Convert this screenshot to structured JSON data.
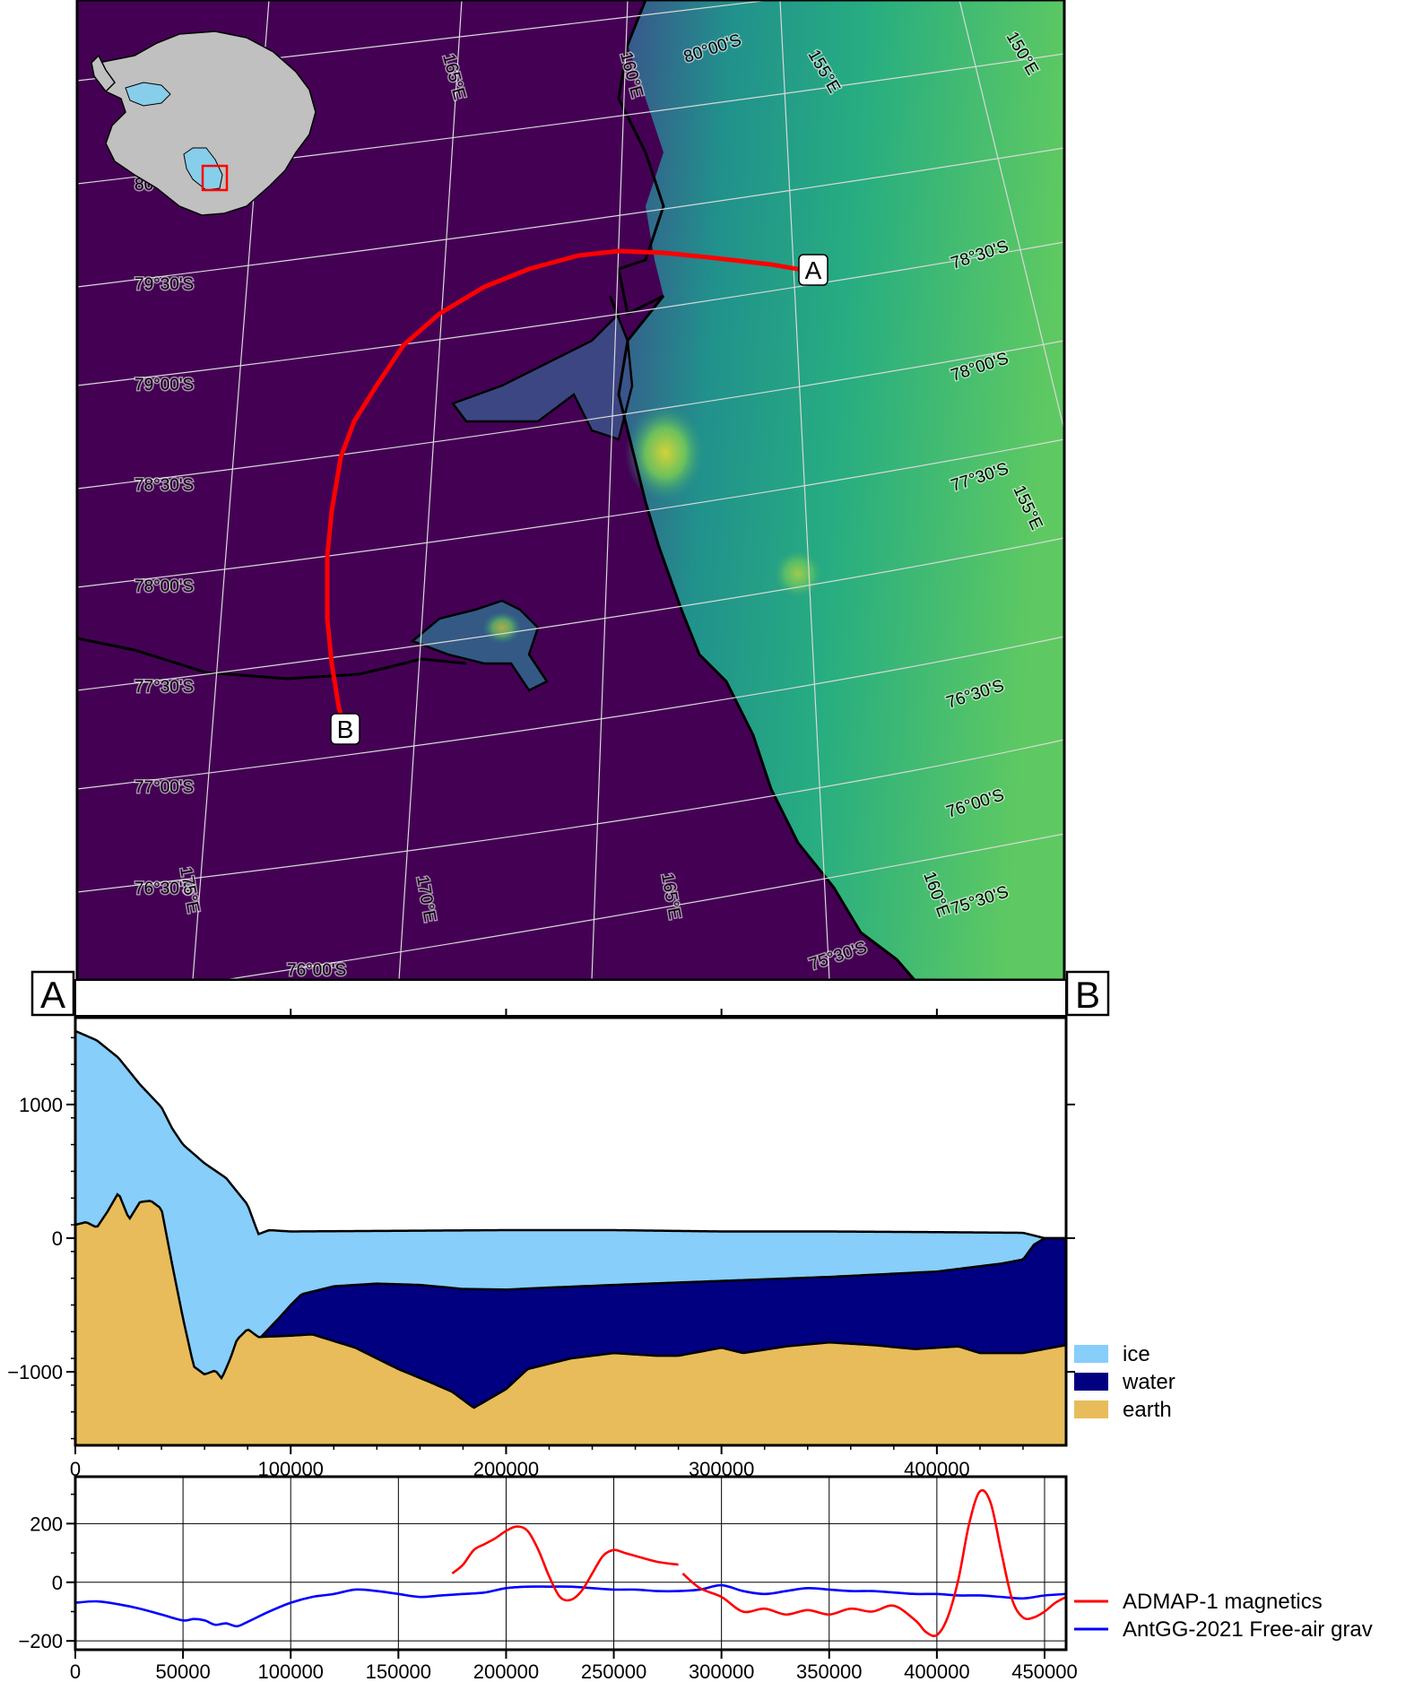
{
  "map": {
    "colors": {
      "background": "#440154",
      "line": "#ff0000",
      "coast": "#000000",
      "grid": "#d9d9d9"
    },
    "endpoints": {
      "start": "A",
      "end": "B"
    },
    "lat_labels_left": [
      "80°00'S",
      "79°30'S",
      "79°00'S",
      "78°30'S",
      "78°00'S",
      "77°30'S",
      "77°00'S",
      "76°30'S",
      "76°00'S"
    ],
    "lat_labels_right": [
      "80°00'S",
      "78°30'S",
      "78°00'S",
      "77°30'S",
      "76°30'S",
      "76°00'S",
      "75°30'S",
      "75°30'S"
    ],
    "lon_labels_top": [
      "165°E",
      "160°E",
      "155°E",
      "150°E"
    ],
    "lon_labels_bottom": [
      "175°E",
      "170°E",
      "165°E",
      "160°E",
      "155°E"
    ],
    "inset": {
      "land_color": "#c0c0c0",
      "ice_shelf_color": "#87ceeb",
      "box_color": "#ff0000"
    }
  },
  "profile_endpoints": {
    "left": "A",
    "right": "B"
  },
  "chart_data": [
    {
      "type": "area",
      "xlim": [
        0,
        460000
      ],
      "ylim": [
        -1550,
        1650
      ],
      "x_ticks": [
        0,
        100000,
        200000,
        300000,
        400000
      ],
      "x_tick_labels": [
        "0",
        "100000",
        "200000",
        "300000",
        "400000"
      ],
      "y_ticks": [
        1000,
        0,
        -1000
      ],
      "y_tick_labels": [
        "1000",
        "0",
        "−1000"
      ],
      "legend_position": "right",
      "series": [
        {
          "name": "ice",
          "color": "#87cefa"
        },
        {
          "name": "water",
          "color": "#000080"
        },
        {
          "name": "earth",
          "color": "#e8bc5a"
        }
      ],
      "surface": {
        "x": [
          0,
          10000,
          20000,
          30000,
          40000,
          45000,
          50000,
          60000,
          70000,
          80000,
          85000,
          90000,
          100000,
          150000,
          200000,
          250000,
          300000,
          350000,
          400000,
          440000,
          445000,
          450000,
          460000
        ],
        "y": [
          1550,
          1480,
          1350,
          1150,
          980,
          820,
          700,
          560,
          450,
          250,
          30,
          60,
          50,
          55,
          60,
          60,
          50,
          50,
          45,
          40,
          20,
          0,
          0
        ]
      },
      "ice_base": {
        "x": [
          85000,
          95000,
          100000,
          105000,
          120000,
          140000,
          160000,
          180000,
          200000,
          220000,
          250000,
          300000,
          350000,
          400000,
          430000,
          440000,
          445000,
          450000,
          460000
        ],
        "y": [
          -760,
          -590,
          -500,
          -420,
          -360,
          -340,
          -350,
          -380,
          -385,
          -370,
          -350,
          -320,
          -290,
          -250,
          -190,
          -160,
          -50,
          0,
          0
        ]
      },
      "bed": {
        "x": [
          0,
          5000,
          10000,
          15000,
          20000,
          25000,
          30000,
          35000,
          40000,
          45000,
          50000,
          55000,
          60000,
          65000,
          68000,
          72000,
          75000,
          80000,
          85000,
          100000,
          110000,
          130000,
          150000,
          165000,
          175000,
          185000,
          200000,
          210000,
          230000,
          250000,
          270000,
          280000,
          300000,
          310000,
          330000,
          350000,
          370000,
          390000,
          410000,
          420000,
          440000,
          460000
        ],
        "y": [
          100,
          120,
          80,
          200,
          340,
          140,
          270,
          280,
          220,
          -200,
          -600,
          -960,
          -1020,
          -990,
          -1050,
          -900,
          -760,
          -680,
          -740,
          -730,
          -720,
          -820,
          -980,
          -1080,
          -1150,
          -1270,
          -1130,
          -980,
          -900,
          -860,
          -880,
          -880,
          -820,
          -860,
          -810,
          -780,
          -800,
          -830,
          -810,
          -860,
          -860,
          -800
        ]
      }
    },
    {
      "type": "line",
      "xlim": [
        0,
        460000
      ],
      "ylim": [
        -230,
        360
      ],
      "x_ticks": [
        0,
        50000,
        100000,
        150000,
        200000,
        250000,
        300000,
        350000,
        400000,
        450000
      ],
      "x_tick_labels": [
        "0",
        "50000",
        "100000",
        "150000",
        "200000",
        "250000",
        "300000",
        "350000",
        "400000",
        "450000"
      ],
      "y_ticks": [
        200,
        0,
        -200
      ],
      "y_tick_labels": [
        "200",
        "0",
        "−200"
      ],
      "grid": true,
      "legend_position": "right",
      "series": [
        {
          "name": "ADMAP-1 magnetics",
          "color": "#ff0000",
          "segments": [
            {
              "x": [
                175000,
                180000,
                185000,
                190000,
                195000,
                200000,
                205000,
                210000,
                215000,
                220000,
                225000,
                230000,
                235000,
                240000,
                245000,
                250000,
                255000,
                260000,
                270000,
                280000
              ],
              "y": [
                30,
                60,
                110,
                130,
                150,
                175,
                190,
                175,
                110,
                20,
                -50,
                -60,
                -30,
                30,
                90,
                110,
                100,
                90,
                70,
                60
              ]
            },
            {
              "x": [
                282000,
                290000,
                300000,
                310000,
                320000,
                330000,
                340000,
                350000,
                360000,
                370000,
                380000,
                390000,
                395000,
                400000,
                405000,
                410000,
                415000,
                420000,
                425000,
                430000,
                435000,
                440000,
                445000,
                450000,
                455000,
                460000
              ],
              "y": [
                30,
                -20,
                -50,
                -100,
                -90,
                -110,
                -95,
                -110,
                -90,
                -100,
                -80,
                -130,
                -170,
                -180,
                -120,
                10,
                200,
                310,
                270,
                100,
                -60,
                -120,
                -120,
                -100,
                -70,
                -50
              ]
            }
          ]
        },
        {
          "name": "AntGG-2021 Free-air grav",
          "color": "#0000ff",
          "segments": [
            {
              "x": [
                0,
                10000,
                20000,
                30000,
                40000,
                50000,
                55000,
                60000,
                65000,
                70000,
                75000,
                80000,
                90000,
                100000,
                110000,
                120000,
                130000,
                140000,
                150000,
                160000,
                170000,
                180000,
                190000,
                200000,
                210000,
                220000,
                230000,
                240000,
                250000,
                260000,
                270000,
                280000,
                290000,
                300000,
                310000,
                320000,
                330000,
                340000,
                350000,
                360000,
                370000,
                380000,
                390000,
                400000,
                410000,
                420000,
                430000,
                440000,
                450000,
                460000
              ],
              "y": [
                -70,
                -65,
                -75,
                -90,
                -110,
                -130,
                -125,
                -130,
                -145,
                -140,
                -150,
                -135,
                -100,
                -70,
                -50,
                -40,
                -25,
                -30,
                -40,
                -50,
                -45,
                -40,
                -35,
                -20,
                -15,
                -15,
                -15,
                -20,
                -25,
                -25,
                -30,
                -30,
                -25,
                -10,
                -30,
                -40,
                -30,
                -20,
                -25,
                -30,
                -30,
                -35,
                -40,
                -40,
                -45,
                -45,
                -50,
                -55,
                -45,
                -40
              ]
            }
          ]
        }
      ]
    }
  ]
}
